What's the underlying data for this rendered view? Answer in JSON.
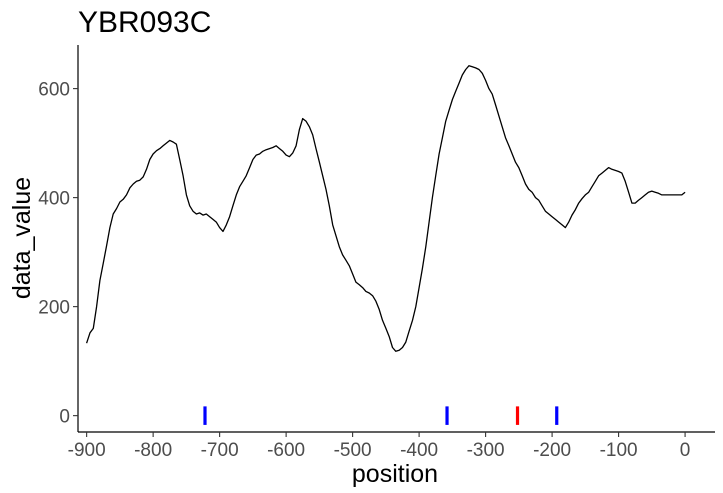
{
  "chart_data": {
    "type": "line",
    "title": "YBR093C",
    "xlabel": "position",
    "ylabel": "data_value",
    "xlim": [
      -913,
      45
    ],
    "ylim": [
      -30,
      680
    ],
    "xticks": [
      -900,
      -800,
      -700,
      -600,
      -500,
      -400,
      -300,
      -200,
      -100,
      0
    ],
    "xtick_labels": [
      "-900",
      "-800",
      "-700",
      "-600",
      "-500",
      "-400",
      "-300",
      "-200",
      "-100",
      "0"
    ],
    "yticks": [
      0,
      200,
      400,
      600
    ],
    "ytick_labels": [
      "0",
      "200",
      "400",
      "600"
    ],
    "grid": false,
    "series": [
      {
        "name": "data_value",
        "color": "#000000",
        "x": [
          -900,
          -895,
          -890,
          -885,
          -880,
          -875,
          -870,
          -865,
          -860,
          -855,
          -850,
          -845,
          -840,
          -835,
          -830,
          -825,
          -820,
          -815,
          -810,
          -805,
          -800,
          -795,
          -790,
          -785,
          -780,
          -775,
          -770,
          -765,
          -760,
          -755,
          -750,
          -745,
          -740,
          -735,
          -730,
          -725,
          -720,
          -715,
          -710,
          -705,
          -700,
          -695,
          -690,
          -685,
          -680,
          -675,
          -670,
          -665,
          -660,
          -655,
          -650,
          -645,
          -640,
          -635,
          -630,
          -625,
          -620,
          -615,
          -610,
          -605,
          -600,
          -595,
          -590,
          -585,
          -580,
          -575,
          -570,
          -565,
          -560,
          -555,
          -550,
          -545,
          -540,
          -535,
          -530,
          -525,
          -520,
          -515,
          -510,
          -505,
          -500,
          -495,
          -490,
          -485,
          -480,
          -475,
          -470,
          -465,
          -460,
          -455,
          -450,
          -445,
          -440,
          -435,
          -430,
          -425,
          -420,
          -415,
          -410,
          -405,
          -400,
          -395,
          -390,
          -385,
          -380,
          -375,
          -370,
          -365,
          -360,
          -355,
          -350,
          -345,
          -340,
          -335,
          -330,
          -325,
          -320,
          -315,
          -310,
          -305,
          -300,
          -295,
          -290,
          -285,
          -280,
          -275,
          -270,
          -265,
          -260,
          -255,
          -250,
          -245,
          -240,
          -235,
          -230,
          -225,
          -220,
          -215,
          -210,
          -205,
          -200,
          -195,
          -190,
          -185,
          -180,
          -175,
          -170,
          -165,
          -160,
          -155,
          -150,
          -145,
          -140,
          -135,
          -130,
          -125,
          -120,
          -115,
          -110,
          -105,
          -100,
          -95,
          -90,
          -85,
          -80,
          -75,
          -70,
          -65,
          -60,
          -55,
          -50,
          -45,
          -40,
          -35,
          -30,
          -25,
          -20,
          -15,
          -10,
          -5,
          0
        ],
        "values": [
          133,
          152,
          160,
          200,
          248,
          280,
          312,
          345,
          370,
          380,
          392,
          397,
          405,
          418,
          425,
          430,
          432,
          438,
          452,
          470,
          480,
          486,
          490,
          495,
          500,
          505,
          502,
          498,
          470,
          440,
          405,
          385,
          375,
          370,
          372,
          368,
          370,
          365,
          360,
          355,
          345,
          338,
          350,
          365,
          385,
          405,
          420,
          430,
          440,
          455,
          470,
          478,
          480,
          485,
          488,
          490,
          492,
          495,
          490,
          485,
          478,
          475,
          482,
          495,
          525,
          545,
          540,
          530,
          515,
          490,
          465,
          440,
          415,
          385,
          350,
          330,
          310,
          295,
          285,
          275,
          260,
          245,
          240,
          235,
          228,
          225,
          220,
          210,
          195,
          175,
          160,
          145,
          125,
          118,
          120,
          125,
          135,
          155,
          175,
          200,
          235,
          270,
          310,
          355,
          400,
          440,
          480,
          510,
          540,
          560,
          580,
          595,
          610,
          625,
          635,
          642,
          640,
          638,
          635,
          628,
          615,
          600,
          590,
          570,
          550,
          530,
          510,
          495,
          480,
          465,
          455,
          440,
          425,
          415,
          410,
          400,
          395,
          385,
          375,
          370,
          365,
          360,
          355,
          350,
          345,
          355,
          368,
          378,
          390,
          398,
          405,
          410,
          420,
          430,
          440,
          445,
          450,
          455,
          452,
          450,
          448,
          445,
          430,
          410,
          390,
          390,
          395,
          400,
          405,
          410,
          412,
          410,
          408,
          405,
          405,
          405,
          405,
          405,
          405,
          405,
          410
        ]
      }
    ],
    "markers": [
      {
        "x": -722,
        "color": "#0000ff"
      },
      {
        "x": -358,
        "color": "#0000ff"
      },
      {
        "x": -252,
        "color": "#ff0000"
      },
      {
        "x": -193,
        "color": "#0000ff"
      }
    ]
  }
}
